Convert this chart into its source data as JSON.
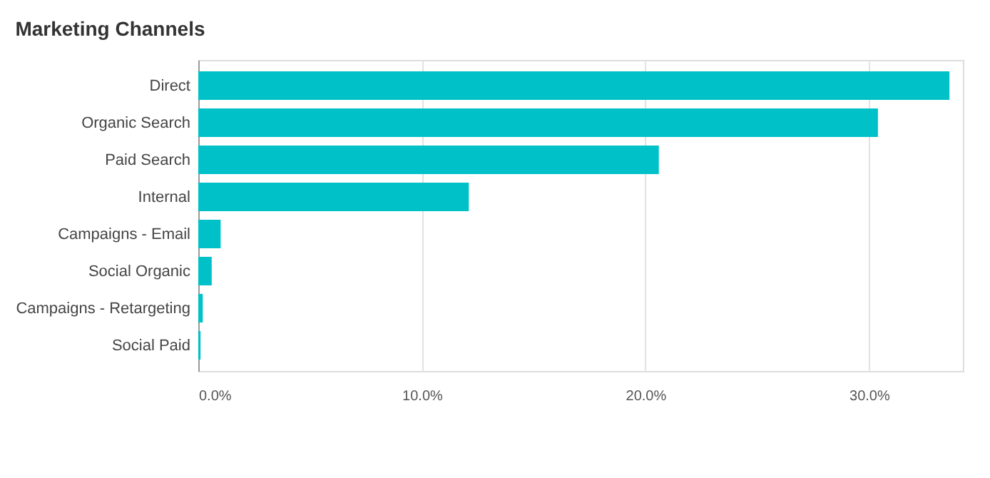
{
  "chart_data": {
    "type": "bar",
    "orientation": "horizontal",
    "title": "Marketing Channels",
    "categories": [
      "Direct",
      "Organic Search",
      "Paid Search",
      "Internal",
      "Campaigns - Email",
      "Social Organic",
      "Campaigns - Retargeting",
      "Social Paid"
    ],
    "values": [
      33.6,
      30.4,
      20.6,
      12.1,
      1.0,
      0.6,
      0.2,
      0.1
    ],
    "color": "#00c1c8",
    "xlim": [
      0,
      34.2
    ],
    "xticks": [
      {
        "value": 0,
        "label": "0.0%"
      },
      {
        "value": 10,
        "label": "10.0%"
      },
      {
        "value": 20,
        "label": "20.0%"
      },
      {
        "value": 30,
        "label": "30.0%"
      }
    ],
    "grid": "x"
  }
}
